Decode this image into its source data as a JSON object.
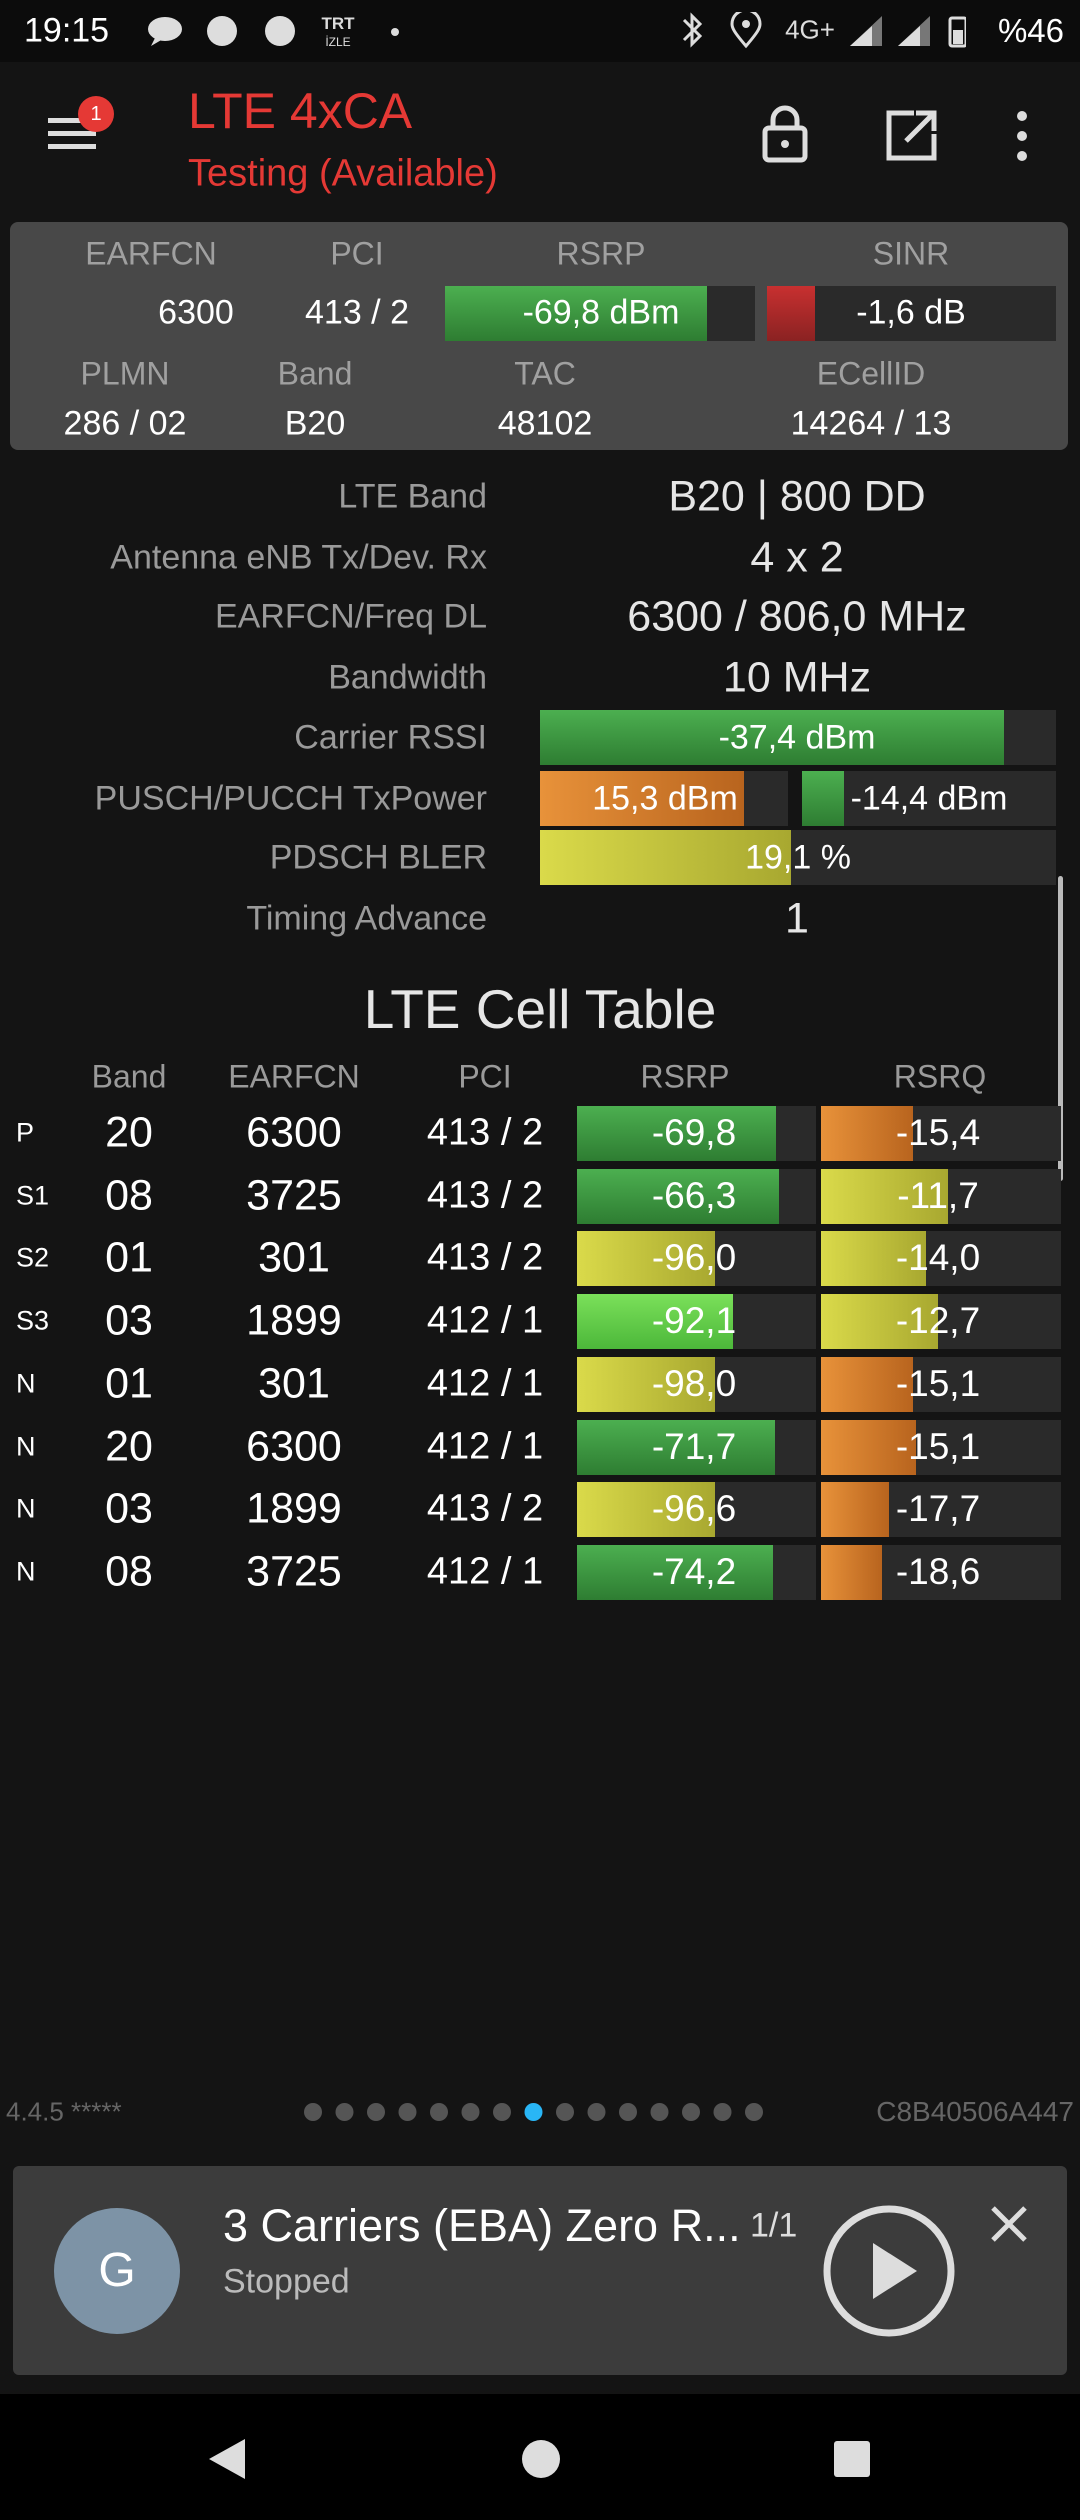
{
  "status_bar": {
    "time": "19:15",
    "tv_logo": [
      "TRT",
      "İZLE"
    ],
    "network": "4G+",
    "battery": "%46"
  },
  "header": {
    "badge": "1",
    "title": "LTE 4xCA",
    "subtitle": "Testing (Available)"
  },
  "summary": {
    "row1": {
      "labels": [
        "EARFCN",
        "PCI",
        "RSRP",
        "SINR"
      ],
      "values": [
        "6300",
        "413 / 2",
        "-69,8 dBm",
        "-1,6 dB"
      ]
    },
    "row2": {
      "labels": [
        "PLMN",
        "Band",
        "TAC",
        "ECellID"
      ],
      "values": [
        "286 / 02",
        "B20",
        "48102",
        "14264 / 13"
      ]
    }
  },
  "details": [
    {
      "label": "LTE Band",
      "value": "B20 | 800 DD"
    },
    {
      "label": "Antenna eNB Tx/Dev. Rx",
      "value": "4 x 2"
    },
    {
      "label": "EARFCN/Freq DL",
      "value": "6300 / 806,0 MHz"
    },
    {
      "label": "Bandwidth",
      "value": "10 MHz"
    },
    {
      "label": "Carrier RSSI",
      "value": "-37,4 dBm"
    },
    {
      "label": "PUSCH/PUCCH TxPower",
      "values": [
        "15,3 dBm",
        "-14,4 dBm"
      ]
    },
    {
      "label": "PDSCH BLER",
      "value": "19,1 %"
    },
    {
      "label": "Timing Advance",
      "value": "1"
    }
  ],
  "cell_table": {
    "title": "LTE Cell Table",
    "headers": [
      "Band",
      "EARFCN",
      "PCI",
      "RSRP",
      "RSRQ"
    ],
    "rows": [
      [
        "P",
        "20",
        "6300",
        "413 / 2",
        "-69,8",
        "-15,4"
      ],
      [
        "S1",
        "08",
        "3725",
        "413 / 2",
        "-66,3",
        "-11,7"
      ],
      [
        "S2",
        "01",
        "301",
        "413 / 2",
        "-96,0",
        "-14,0"
      ],
      [
        "S3",
        "03",
        "1899",
        "412 / 1",
        "-92,1",
        "-12,7"
      ],
      [
        "N",
        "01",
        "301",
        "412 / 1",
        "-98,0",
        "-15,1"
      ],
      [
        "N",
        "20",
        "6300",
        "412 / 1",
        "-71,7",
        "-15,1"
      ],
      [
        "N",
        "03",
        "1899",
        "413 / 2",
        "-96,6",
        "-17,7"
      ],
      [
        "N",
        "08",
        "3725",
        "412 / 1",
        "-74,2",
        "-18,6"
      ]
    ]
  },
  "footer": {
    "version": "4.4.5 *****",
    "device_id": "C8B40506A447"
  },
  "media": {
    "avatar": "G",
    "title": "3 Carriers (EBA) Zero R...",
    "count": "1/1",
    "status": "Stopped"
  }
}
